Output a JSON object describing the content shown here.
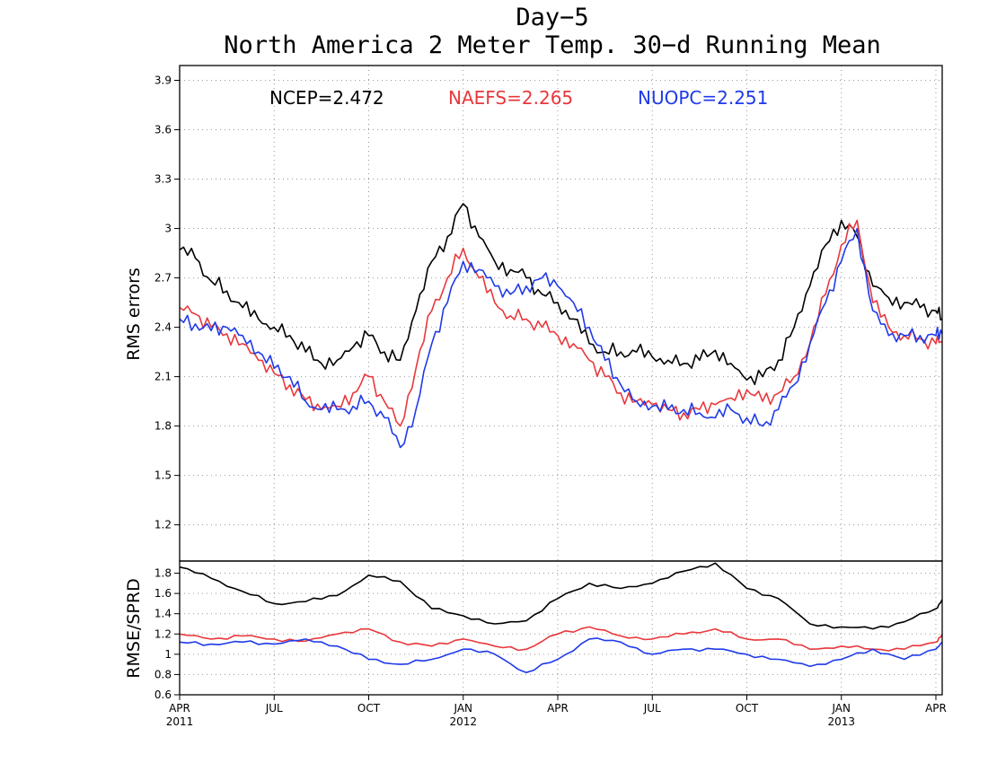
{
  "title": {
    "line1": "Day−5",
    "line2": "North America 2 Meter Temp. 30−d Running Mean"
  },
  "legend_items": [
    {
      "label": "NCEP=2.472",
      "color": "#000000"
    },
    {
      "label": "NAEFS=2.265",
      "color": "#e8383c"
    },
    {
      "label": "NUOPC=2.251",
      "color": "#1f3ae8"
    }
  ],
  "x_axis": {
    "ticks": [
      {
        "label": "APR",
        "sub": "2011",
        "month_index": 0
      },
      {
        "label": "JUL",
        "sub": "",
        "month_index": 3
      },
      {
        "label": "OCT",
        "sub": "",
        "month_index": 6
      },
      {
        "label": "JAN",
        "sub": "2012",
        "month_index": 9
      },
      {
        "label": "APR",
        "sub": "",
        "month_index": 12
      },
      {
        "label": "JUL",
        "sub": "",
        "month_index": 15
      },
      {
        "label": "OCT",
        "sub": "",
        "month_index": 18
      },
      {
        "label": "JAN",
        "sub": "2013",
        "month_index": 21
      },
      {
        "label": "APR",
        "sub": "",
        "month_index": 24
      }
    ]
  },
  "chart_data": [
    {
      "type": "line",
      "title": "Day−5 North America 2 Meter Temp. 30−d Running Mean",
      "xlabel": "",
      "ylabel": "RMS errors",
      "ylim": [
        0.98,
        3.99
      ],
      "yticks": [
        1.2,
        1.5,
        1.8,
        2.1,
        2.4,
        2.7,
        3.0,
        3.3,
        3.6,
        3.9
      ],
      "ytick_labels": [
        "1.2",
        "1.5",
        "1.8",
        "2.1",
        "2.4",
        "2.7",
        "3",
        "3.3",
        "3.6",
        "3.9"
      ],
      "grid": true,
      "legend": "top",
      "x_unit": "months since Apr 2011",
      "x": [
        0,
        0.5,
        1,
        1.5,
        2,
        2.5,
        3,
        3.5,
        4,
        4.5,
        5,
        5.5,
        6,
        6.5,
        7,
        7.5,
        8,
        8.5,
        9,
        9.5,
        10,
        10.5,
        11,
        11.5,
        12,
        12.5,
        13,
        13.5,
        14,
        14.5,
        15,
        15.5,
        16,
        16.5,
        17,
        17.5,
        18,
        18.5,
        19,
        19.5,
        20,
        20.5,
        21,
        21.5,
        22,
        22.5,
        23,
        23.5,
        24,
        24.2
      ],
      "series": [
        {
          "name": "NCEP",
          "color": "#000000",
          "values": [
            2.87,
            2.82,
            2.68,
            2.62,
            2.52,
            2.45,
            2.4,
            2.35,
            2.25,
            2.18,
            2.2,
            2.28,
            2.35,
            2.25,
            2.2,
            2.5,
            2.8,
            2.95,
            3.15,
            2.95,
            2.8,
            2.75,
            2.7,
            2.6,
            2.55,
            2.45,
            2.3,
            2.25,
            2.25,
            2.25,
            2.22,
            2.2,
            2.18,
            2.2,
            2.26,
            2.18,
            2.08,
            2.1,
            2.2,
            2.4,
            2.65,
            2.9,
            3.05,
            2.95,
            2.65,
            2.58,
            2.55,
            2.52,
            2.5,
            2.45
          ]
        },
        {
          "name": "NAEFS",
          "color": "#e8383c",
          "values": [
            2.52,
            2.48,
            2.4,
            2.36,
            2.3,
            2.2,
            2.12,
            2.05,
            1.96,
            1.9,
            1.92,
            2.0,
            2.1,
            1.95,
            1.8,
            2.15,
            2.5,
            2.7,
            2.88,
            2.7,
            2.55,
            2.47,
            2.45,
            2.4,
            2.35,
            2.3,
            2.2,
            2.1,
            2.0,
            1.95,
            1.93,
            1.9,
            1.88,
            1.9,
            1.93,
            1.97,
            2.02,
            1.95,
            2.0,
            2.1,
            2.3,
            2.6,
            2.9,
            3.05,
            2.55,
            2.4,
            2.35,
            2.33,
            2.3,
            2.31
          ]
        },
        {
          "name": "NUOPC",
          "color": "#1f3ae8",
          "values": [
            2.45,
            2.42,
            2.38,
            2.4,
            2.35,
            2.25,
            2.15,
            2.1,
            1.95,
            1.9,
            1.9,
            1.92,
            1.95,
            1.85,
            1.67,
            1.9,
            2.3,
            2.55,
            2.8,
            2.75,
            2.65,
            2.6,
            2.65,
            2.7,
            2.65,
            2.55,
            2.4,
            2.2,
            2.05,
            1.95,
            1.92,
            1.9,
            1.9,
            1.88,
            1.85,
            1.9,
            1.85,
            1.8,
            1.9,
            2.05,
            2.3,
            2.55,
            2.8,
            3.0,
            2.5,
            2.35,
            2.35,
            2.35,
            2.35,
            2.36
          ]
        }
      ]
    },
    {
      "type": "line",
      "title": "",
      "xlabel": "",
      "ylabel": "RMSE/SPRD",
      "ylim": [
        0.6,
        1.92
      ],
      "yticks": [
        0.6,
        0.8,
        1.0,
        1.2,
        1.4,
        1.6,
        1.8
      ],
      "ytick_labels": [
        "0.6",
        "0.8",
        "1",
        "1.2",
        "1.4",
        "1.6",
        "1.8"
      ],
      "grid": true,
      "x_unit": "months since Apr 2011",
      "x": [
        0,
        1,
        2,
        3,
        4,
        5,
        6,
        7,
        8,
        9,
        10,
        11,
        12,
        13,
        14,
        15,
        16,
        17,
        18,
        19,
        20,
        21,
        22,
        23,
        24,
        24.2
      ],
      "series": [
        {
          "name": "NCEP",
          "color": "#000000",
          "values": [
            1.86,
            1.75,
            1.62,
            1.5,
            1.52,
            1.58,
            1.78,
            1.72,
            1.45,
            1.38,
            1.3,
            1.33,
            1.55,
            1.7,
            1.65,
            1.7,
            1.82,
            1.9,
            1.65,
            1.55,
            1.3,
            1.27,
            1.25,
            1.32,
            1.45,
            1.54
          ]
        },
        {
          "name": "NAEFS",
          "color": "#e8383c",
          "values": [
            1.2,
            1.15,
            1.18,
            1.15,
            1.13,
            1.2,
            1.25,
            1.12,
            1.08,
            1.15,
            1.08,
            1.05,
            1.2,
            1.27,
            1.18,
            1.15,
            1.2,
            1.25,
            1.15,
            1.15,
            1.05,
            1.08,
            1.05,
            1.05,
            1.12,
            1.2
          ]
        },
        {
          "name": "NUOPC",
          "color": "#1f3ae8",
          "values": [
            1.12,
            1.1,
            1.12,
            1.1,
            1.15,
            1.08,
            0.95,
            0.9,
            0.95,
            1.05,
            1.0,
            0.82,
            0.95,
            1.15,
            1.12,
            1.0,
            1.05,
            1.05,
            1.0,
            0.95,
            0.88,
            0.95,
            1.05,
            0.95,
            1.05,
            1.12
          ]
        }
      ]
    }
  ]
}
